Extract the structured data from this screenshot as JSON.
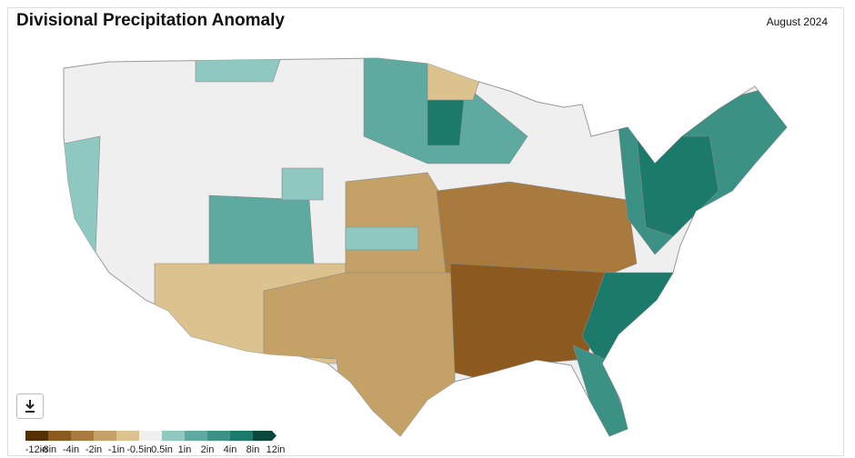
{
  "header": {
    "title": "Divisional Precipitation Anomaly",
    "date": "August 2024"
  },
  "legend": {
    "labels": [
      "-12in",
      "-8in",
      "-4in",
      "-2in",
      "-1in",
      "-0.5in",
      "0.5in",
      "1in",
      "2in",
      "4in",
      "8in",
      "12in"
    ],
    "colors": [
      "#543005",
      "#8c5a1f",
      "#a87a3e",
      "#c4a166",
      "#dcc28f",
      "#f0f0f0",
      "#8ec8c0",
      "#5eaaa0",
      "#3b9184",
      "#1c7a6a",
      "#0b473d"
    ]
  }
}
